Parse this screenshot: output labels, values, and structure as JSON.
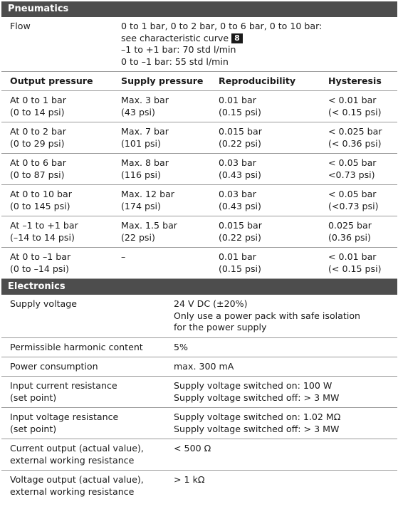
{
  "pneumatics": {
    "title": "Pneumatics",
    "flow_label": "Flow",
    "flow_lines": [
      "0 to 1 bar, 0 to 2 bar, 0 to 6 bar, 0 to 10 bar:",
      "see characteristic curve",
      "–1 to +1 bar: 70 std l/min",
      "0 to –1 bar: 55 std l/min"
    ],
    "curve_badge": "8",
    "headers": [
      "Output pressure",
      "Supply pressure",
      "Reproducibility",
      "Hysteresis"
    ],
    "rows": [
      [
        [
          "At 0 to 1 bar",
          "(0 to 14 psi)"
        ],
        [
          "Max. 3 bar",
          "(43 psi)"
        ],
        [
          "0.01 bar",
          "(0.15 psi)"
        ],
        [
          "< 0.01 bar",
          "(< 0.15 psi)"
        ]
      ],
      [
        [
          "At 0 to 2 bar",
          "(0 to 29 psi)"
        ],
        [
          "Max. 7 bar",
          "(101 psi)"
        ],
        [
          "0.015 bar",
          "(0.22 psi)"
        ],
        [
          "< 0.025 bar",
          "(< 0.36 psi)"
        ]
      ],
      [
        [
          "At 0 to 6 bar",
          "(0 to 87 psi)"
        ],
        [
          "Max. 8 bar",
          "(116 psi)"
        ],
        [
          "0.03 bar",
          "(0.43 psi)"
        ],
        [
          "< 0.05 bar",
          "<0.73 psi)"
        ]
      ],
      [
        [
          "At 0 to 10 bar",
          "(0 to 145 psi)"
        ],
        [
          "Max. 12 bar",
          "(174 psi)"
        ],
        [
          "0.03 bar",
          "(0.43 psi)"
        ],
        [
          "< 0.05 bar",
          "(<0.73 psi)"
        ]
      ],
      [
        [
          "At –1 to +1 bar",
          "(–14 to 14 psi)"
        ],
        [
          "Max. 1.5 bar",
          "(22 psi)"
        ],
        [
          "0.015 bar",
          "(0.22 psi)"
        ],
        [
          "0.025 bar",
          "(0.36 psi)"
        ]
      ],
      [
        [
          "At 0 to –1 bar",
          "(0 to –14 psi)"
        ],
        [
          "–",
          ""
        ],
        [
          "0.01 bar",
          "(0.15 psi)"
        ],
        [
          "< 0.01 bar",
          "(< 0.15 psi)"
        ]
      ]
    ]
  },
  "electronics": {
    "title": "Electronics",
    "rows": [
      {
        "label": [
          "Supply voltage"
        ],
        "value": [
          "24 V DC (±20%)",
          "Only use a power pack with safe isolation",
          "for the power supply"
        ]
      },
      {
        "label": [
          "Permissible harmonic content"
        ],
        "value": [
          "5%"
        ]
      },
      {
        "label": [
          "Power consumption"
        ],
        "value": [
          "max. 300 mA"
        ]
      },
      {
        "label": [
          "Input current resistance",
          "(set point)"
        ],
        "value": [
          "Supply voltage switched on: 100 W",
          "Supply voltage switched off: > 3 MW"
        ]
      },
      {
        "label": [
          "Input voltage resistance",
          "(set point)"
        ],
        "value": [
          "Supply voltage switched on: 1.02 MΩ",
          "Supply voltage switched off: > 3 MW"
        ]
      },
      {
        "label": [
          "Current output (actual value),",
          "external working resistance"
        ],
        "value": [
          "< 500 Ω"
        ]
      },
      {
        "label": [
          "Voltage output (actual value),",
          "external working resistance"
        ],
        "value": [
          "> 1 kΩ"
        ]
      }
    ]
  }
}
